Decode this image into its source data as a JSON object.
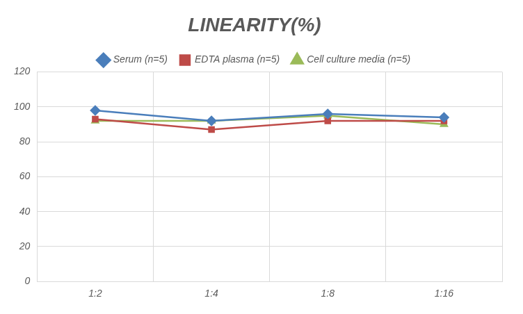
{
  "chart_data": {
    "type": "line",
    "title": "LINEARITY(%)",
    "categories": [
      "1:2",
      "1:4",
      "1:8",
      "1:16"
    ],
    "series": [
      {
        "name": "Serum (n=5)",
        "color": "#4a7ebb",
        "marker": "diamond",
        "values": [
          98,
          92,
          96,
          94
        ]
      },
      {
        "name": "EDTA plasma (n=5)",
        "color": "#be4b48",
        "marker": "square",
        "values": [
          93,
          87,
          92,
          92
        ]
      },
      {
        "name": "Cell culture media (n=5)",
        "color": "#9bbb59",
        "marker": "triangle",
        "values": [
          92,
          92,
          95,
          90
        ]
      }
    ],
    "ylim": [
      0,
      120
    ],
    "yticks": [
      0,
      20,
      40,
      60,
      80,
      100,
      120
    ],
    "grid": true,
    "legend": "top"
  }
}
